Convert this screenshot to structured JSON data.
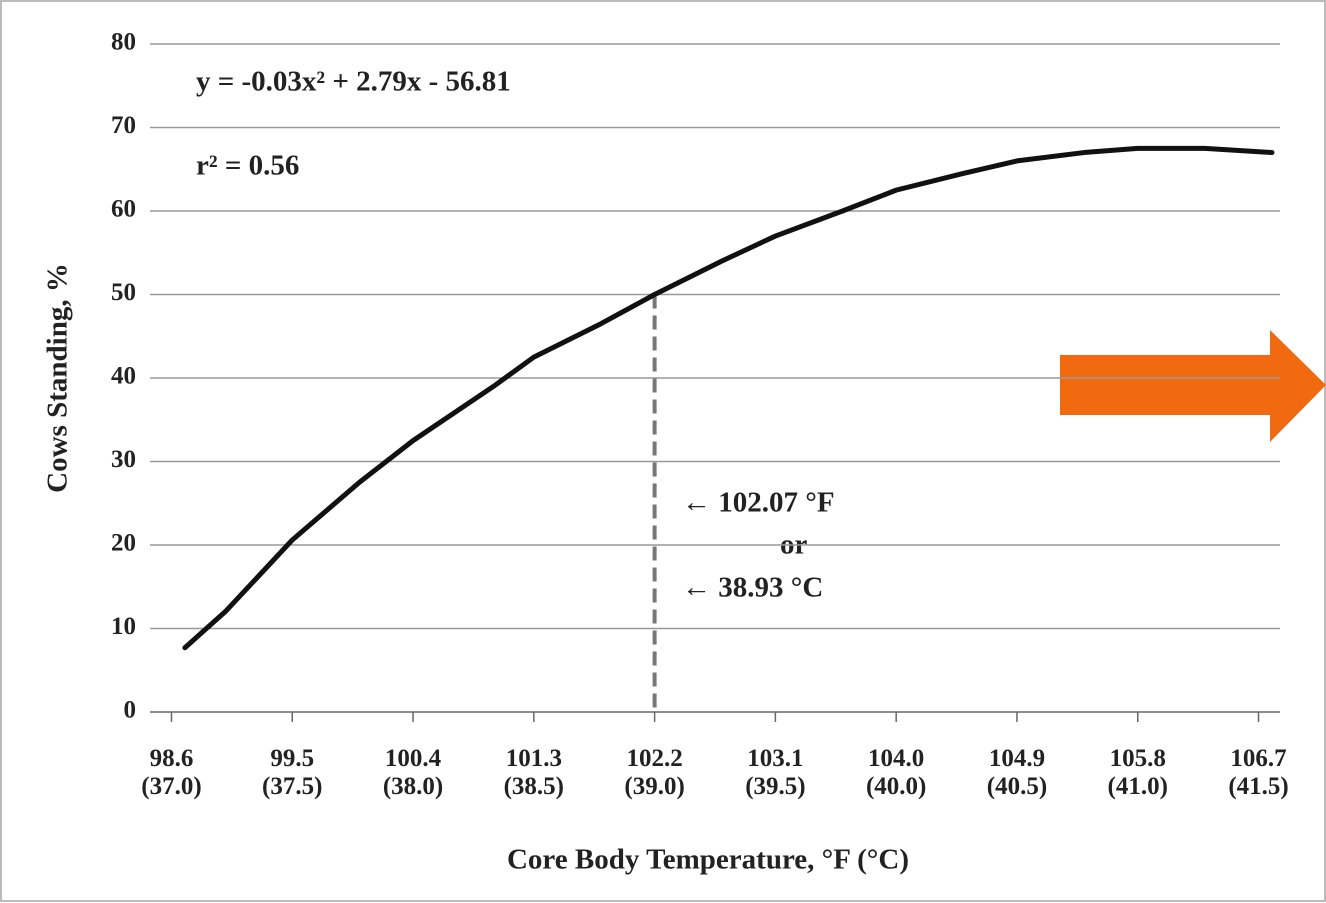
{
  "chart_data": {
    "type": "line",
    "y_label": "Cows Standing, %",
    "x_label": "Core Body Temperature, °F (°C)",
    "annotations": [
      "y = -0.03x² + 2.79x - 56.81",
      "r² = 0.56",
      "← 102.07 °F",
      "or",
      "← 38.93 °C"
    ],
    "x": [
      98.7,
      99.0,
      99.5,
      100.0,
      100.4,
      101.0,
      101.3,
      101.8,
      102.2,
      102.7,
      103.1,
      103.6,
      104.0,
      104.5,
      104.9,
      105.4,
      105.8,
      106.3,
      106.8
    ],
    "series": [
      {
        "name": "Cows standing",
        "color": "#111111",
        "values": [
          7.7,
          12,
          20.6,
          27.5,
          32.5,
          39,
          42.5,
          46.5,
          50,
          54,
          57,
          60,
          62.5,
          64.5,
          66,
          67,
          67.5,
          67.5,
          67
        ]
      }
    ],
    "reference_line": {
      "x": 102.2,
      "y": 50,
      "color": "#777777"
    },
    "xlim": [
      98.44,
      106.86
    ],
    "xticks": [
      {
        "value": 98.6,
        "label": "98.6 (37.0)"
      },
      {
        "value": 99.5,
        "label": "99.5 (37.5)"
      },
      {
        "value": 100.4,
        "label": "100.4 (38.0)"
      },
      {
        "value": 101.3,
        "label": "101.3 (38.5)"
      },
      {
        "value": 102.2,
        "label": "102.2 (39.0)"
      },
      {
        "value": 103.1,
        "label": "103.1 (39.5)"
      },
      {
        "value": 104.0,
        "label": "104.0 (40.0)"
      },
      {
        "value": 104.9,
        "label": "104.9 (40.5)"
      },
      {
        "value": 105.8,
        "label": "105.8 (41.0)"
      },
      {
        "value": 106.7,
        "label": "106.7 (41.5)"
      }
    ],
    "ylim": [
      0,
      80
    ],
    "yticks": [
      0,
      10,
      20,
      30,
      40,
      50,
      60,
      70,
      80
    ],
    "grid": true
  }
}
